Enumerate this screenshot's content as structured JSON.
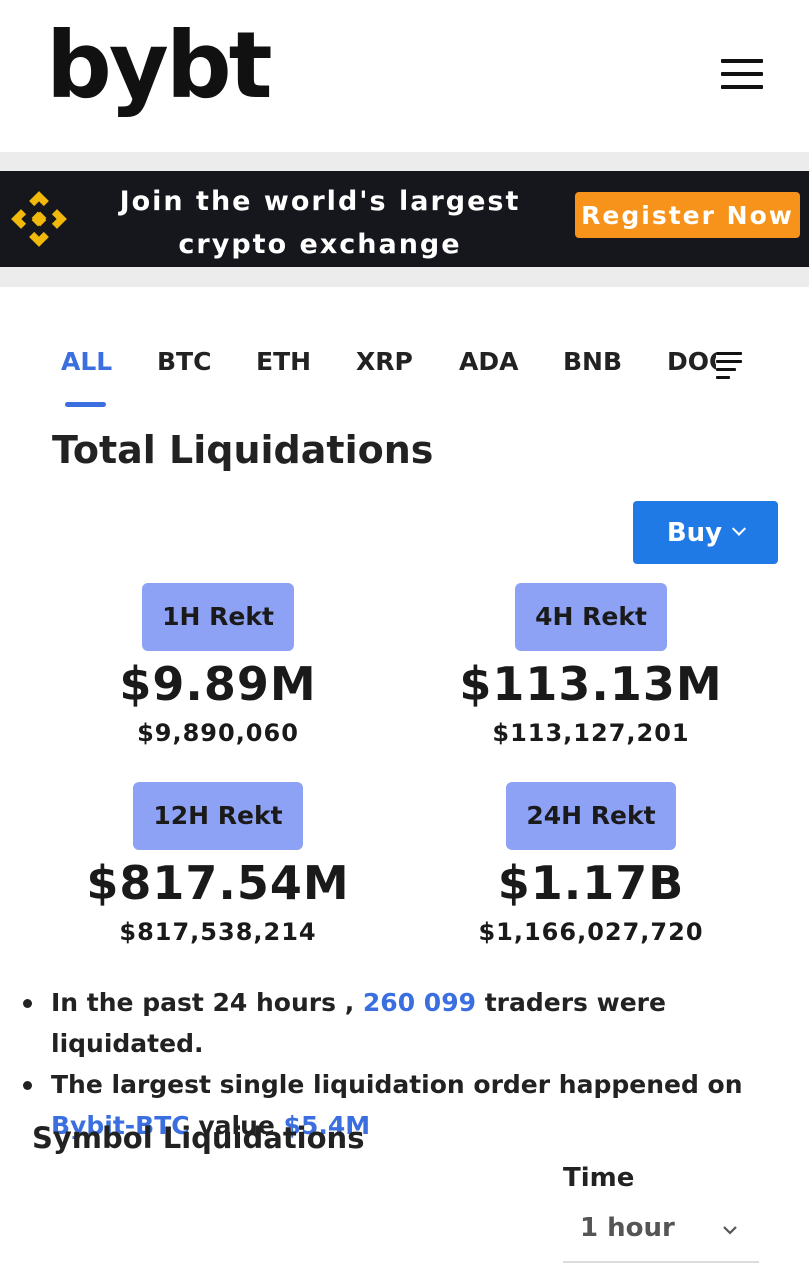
{
  "header": {
    "logo": "bybt",
    "menu_icon": "hamburger-menu-icon"
  },
  "banner": {
    "line1": "Join the world's largest",
    "line2": "crypto exchange",
    "cta": "Register Now",
    "logo_icon": "binance-logo-icon",
    "colors": {
      "background": "#16161d",
      "logo": "#f0b90b",
      "cta": "#f7931a"
    }
  },
  "tabs": {
    "items": [
      {
        "label": "ALL",
        "active": true
      },
      {
        "label": "BTC"
      },
      {
        "label": "ETH"
      },
      {
        "label": "XRP"
      },
      {
        "label": "ADA"
      },
      {
        "label": "BNB"
      },
      {
        "label": "DOC"
      }
    ],
    "more_icon": "list-icon"
  },
  "total": {
    "title": "Total Liquidations",
    "buy_label": "Buy",
    "stats": [
      {
        "label": "1H Rekt",
        "big": "$9.89M",
        "exact": "$9,890,060"
      },
      {
        "label": "4H Rekt",
        "big": "$113.13M",
        "exact": "$113,127,201"
      },
      {
        "label": "12H Rekt",
        "big": "$817.54M",
        "exact": "$817,538,214"
      },
      {
        "label": "24H Rekt",
        "big": "$1.17B",
        "exact": "$1,166,027,720"
      }
    ]
  },
  "summary": {
    "line1_prefix": "In the past 24 hours ,",
    "line1_count": "260 099",
    "line1_suffix": "traders were liquidated.",
    "line2_prefix": "The largest single liquidation order happened on",
    "line2_exchange": "Bybit-BTC",
    "line2_mid": "value",
    "line2_value": "$5.4M"
  },
  "symbol": {
    "title": "Symbol Liquidations",
    "time_label": "Time",
    "time_value": "1 hour"
  }
}
